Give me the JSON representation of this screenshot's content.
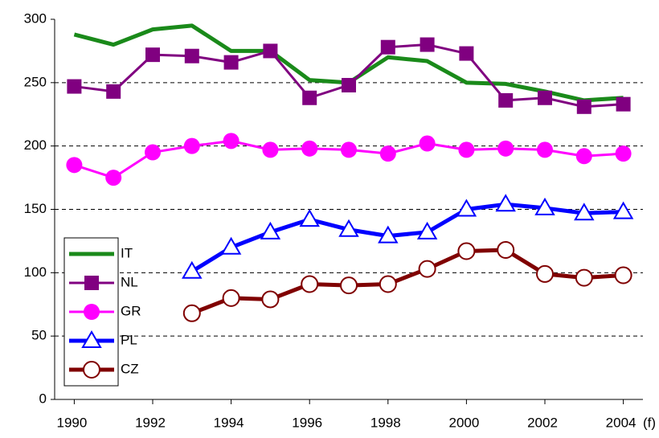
{
  "chart_data": {
    "type": "line",
    "x": [
      1990,
      1991,
      1992,
      1993,
      1994,
      1995,
      1996,
      1997,
      1998,
      1999,
      2000,
      2001,
      2002,
      2003,
      2004
    ],
    "xlim": [
      1989.5,
      2004.5
    ],
    "xticks": [
      1990,
      1992,
      1994,
      1996,
      1998,
      2000,
      2002,
      2004
    ],
    "x_annotation": "(f)",
    "ylim": [
      0,
      300
    ],
    "yticks": [
      0,
      50,
      100,
      150,
      200,
      250,
      300
    ],
    "grid": true,
    "legend": "lower left",
    "series": [
      {
        "name": "IT",
        "color": "#1a8a1a",
        "marker": "none",
        "values": [
          288,
          280,
          292,
          295,
          275,
          275,
          252,
          250,
          270,
          267,
          250,
          249,
          243,
          236,
          238
        ]
      },
      {
        "name": "NL",
        "color": "#800080",
        "marker": "square",
        "values": [
          247,
          243,
          272,
          271,
          266,
          275,
          238,
          248,
          278,
          280,
          273,
          236,
          238,
          231,
          233
        ]
      },
      {
        "name": "GR",
        "color": "#ff00ff",
        "marker": "circle",
        "values": [
          185,
          175,
          195,
          200,
          204,
          197,
          198,
          197,
          194,
          202,
          197,
          198,
          197,
          192,
          194
        ]
      },
      {
        "name": "PL",
        "color": "#0000ff",
        "marker": "open-triangle",
        "values": [
          null,
          null,
          null,
          101,
          120,
          132,
          142,
          134,
          129,
          132,
          150,
          154,
          151,
          147,
          148
        ]
      },
      {
        "name": "CZ",
        "color": "#800000",
        "marker": "open-circle",
        "values": [
          null,
          null,
          null,
          68,
          80,
          79,
          91,
          90,
          91,
          103,
          117,
          118,
          99,
          96,
          98
        ]
      }
    ]
  }
}
